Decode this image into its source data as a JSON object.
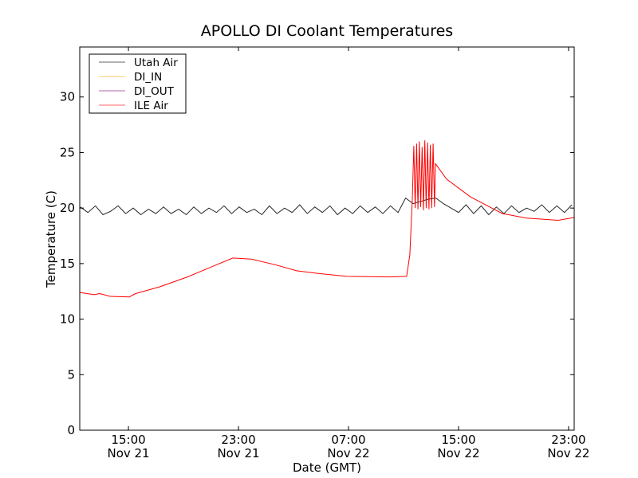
{
  "chart_data": {
    "type": "line",
    "title": "APOLLO DI Coolant Temperatures",
    "xlabel": "Date (GMT)",
    "ylabel": "Temperature (C)",
    "x_units": "hours since Nov 21 00:00 GMT",
    "xlim": [
      11.46,
      47.41
    ],
    "ylim": [
      0,
      34.5
    ],
    "grid": false,
    "legend_position": "top-left",
    "yticks": [
      0,
      5,
      10,
      15,
      20,
      25,
      30
    ],
    "xticks": [
      {
        "value": 15,
        "time": "15:00",
        "date": "Nov 21"
      },
      {
        "value": 23,
        "time": "23:00",
        "date": "Nov 21"
      },
      {
        "value": 31,
        "time": "07:00",
        "date": "Nov 22"
      },
      {
        "value": 39,
        "time": "15:00",
        "date": "Nov 22"
      },
      {
        "value": 47,
        "time": "23:00",
        "date": "Nov 22"
      }
    ],
    "series": [
      {
        "name": "Utah Air",
        "color": "#000000",
        "x": [
          11.5,
          12.05,
          12.6,
          13.15,
          13.7,
          14.25,
          14.8,
          15.35,
          15.9,
          16.45,
          17.0,
          17.55,
          18.1,
          18.65,
          19.2,
          19.75,
          20.3,
          20.85,
          21.4,
          21.95,
          22.5,
          23.05,
          23.6,
          24.15,
          24.7,
          25.25,
          25.8,
          26.35,
          26.9,
          27.45,
          28.0,
          28.55,
          29.1,
          29.65,
          30.2,
          30.75,
          31.3,
          31.85,
          32.4,
          32.95,
          33.5,
          34.05,
          34.6,
          35.15,
          35.7,
          36.25,
          36.8,
          37.35,
          37.9,
          38.45,
          39.0,
          39.55,
          40.1,
          40.65,
          41.2,
          41.75,
          42.3,
          42.85,
          43.4,
          43.95,
          44.5,
          45.05,
          45.6,
          46.15,
          46.7,
          47.25
        ],
        "y": [
          20.1,
          19.6,
          20.2,
          19.4,
          19.7,
          20.2,
          19.5,
          20.0,
          19.4,
          19.9,
          19.5,
          20.1,
          19.5,
          19.9,
          19.4,
          20.1,
          19.5,
          20.0,
          19.6,
          20.2,
          19.5,
          20.1,
          19.6,
          19.9,
          19.4,
          20.2,
          19.5,
          20.0,
          19.6,
          20.3,
          19.5,
          20.1,
          19.6,
          20.2,
          19.4,
          20.0,
          19.5,
          20.2,
          19.6,
          20.1,
          19.5,
          20.2,
          19.6,
          20.9,
          20.4,
          20.6,
          20.8,
          20.9,
          20.4,
          20.0,
          19.6,
          20.3,
          19.5,
          20.2,
          19.4,
          20.1,
          19.5,
          20.2,
          19.6,
          20.0,
          19.7,
          20.3,
          19.6,
          20.2,
          19.6,
          20.3
        ]
      },
      {
        "name": "DI_IN",
        "color": "#ffa500",
        "x": [],
        "y": []
      },
      {
        "name": "DI_OUT",
        "color": "#800080",
        "x": [],
        "y": []
      },
      {
        "name": "ILE Air",
        "color": "#ff0000",
        "x": [
          11.46,
          12.51,
          12.91,
          13.67,
          15.06,
          15.52,
          17.26,
          19.29,
          21.03,
          22.59,
          23.93,
          25.67,
          27.23,
          28.86,
          30.88,
          33.96,
          35.23,
          35.46,
          35.64,
          35.75,
          35.85,
          35.95,
          36.05,
          36.15,
          36.25,
          36.35,
          36.45,
          36.55,
          36.65,
          36.75,
          36.85,
          36.95,
          37.05,
          37.15,
          37.25,
          37.32,
          38.13,
          39.87,
          42.19,
          43.93,
          46.25,
          47.41
        ],
        "y": [
          12.4,
          12.2,
          12.3,
          12.05,
          12.0,
          12.3,
          12.9,
          13.8,
          14.7,
          15.5,
          15.4,
          14.9,
          14.35,
          14.1,
          13.85,
          13.8,
          13.85,
          15.8,
          20.8,
          25.6,
          20.0,
          25.8,
          19.9,
          26.0,
          20.1,
          25.5,
          19.8,
          26.1,
          20.0,
          25.9,
          19.9,
          25.7,
          20.0,
          25.8,
          20.1,
          24.0,
          22.6,
          21.0,
          19.5,
          19.1,
          18.9,
          19.15
        ]
      }
    ]
  }
}
